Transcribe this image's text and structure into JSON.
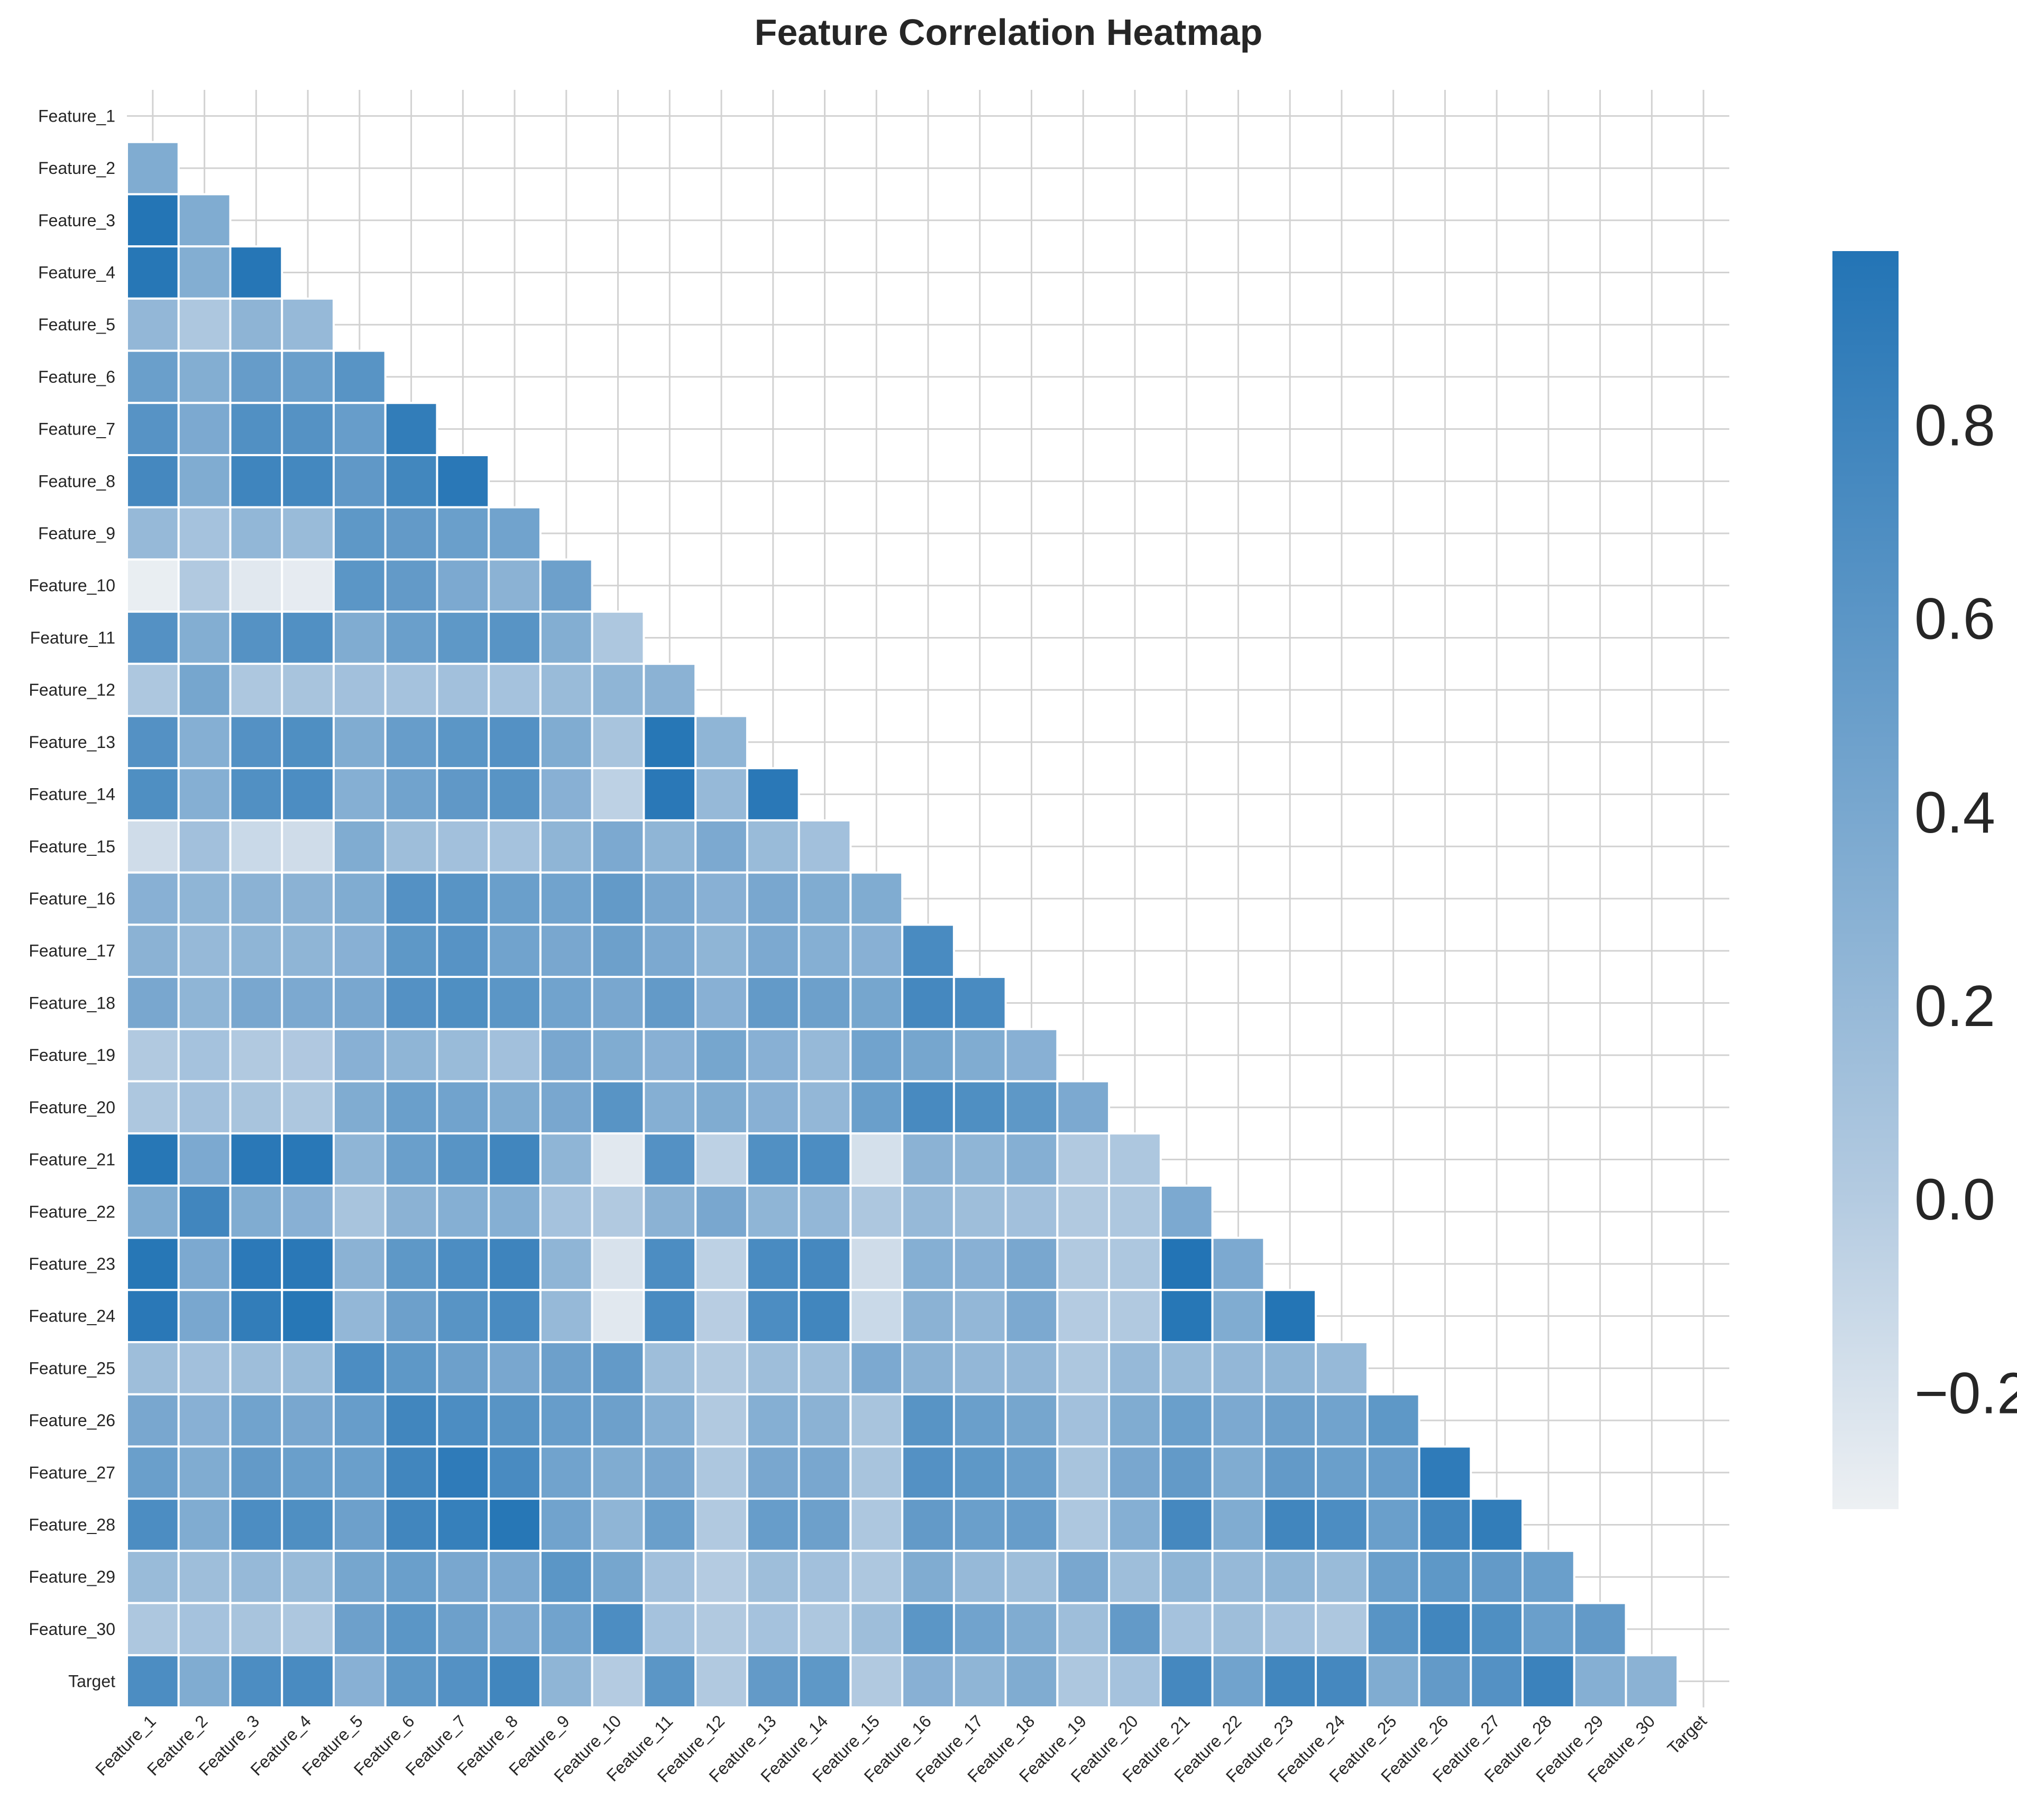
{
  "chart_data": {
    "type": "heatmap",
    "title": "Feature Correlation Heatmap",
    "layout": "lower-triangle",
    "labels": [
      "Feature_1",
      "Feature_2",
      "Feature_3",
      "Feature_4",
      "Feature_5",
      "Feature_6",
      "Feature_7",
      "Feature_8",
      "Feature_9",
      "Feature_10",
      "Feature_11",
      "Feature_12",
      "Feature_13",
      "Feature_14",
      "Feature_15",
      "Feature_16",
      "Feature_17",
      "Feature_18",
      "Feature_19",
      "Feature_20",
      "Feature_21",
      "Feature_22",
      "Feature_23",
      "Feature_24",
      "Feature_25",
      "Feature_26",
      "Feature_27",
      "Feature_28",
      "Feature_29",
      "Feature_30",
      "Target"
    ],
    "values": [
      [],
      [
        0.35
      ],
      [
        0.97,
        0.35
      ],
      [
        0.95,
        0.33,
        0.96
      ],
      [
        0.22,
        0.05,
        0.26,
        0.2
      ],
      [
        0.5,
        0.33,
        0.53,
        0.5,
        0.62
      ],
      [
        0.63,
        0.38,
        0.67,
        0.64,
        0.52,
        0.88
      ],
      [
        0.75,
        0.35,
        0.79,
        0.76,
        0.57,
        0.77,
        0.93
      ],
      [
        0.2,
        0.1,
        0.23,
        0.18,
        0.58,
        0.55,
        0.5,
        0.45
      ],
      [
        -0.3,
        0.02,
        -0.25,
        -0.28,
        0.6,
        0.55,
        0.38,
        0.28,
        0.48
      ],
      [
        0.65,
        0.33,
        0.64,
        0.67,
        0.35,
        0.5,
        0.58,
        0.62,
        0.33,
        0.05
      ],
      [
        0.05,
        0.42,
        0.05,
        0.08,
        0.12,
        0.1,
        0.12,
        0.1,
        0.18,
        0.25,
        0.28
      ],
      [
        0.65,
        0.32,
        0.65,
        0.68,
        0.35,
        0.52,
        0.6,
        0.65,
        0.35,
        0.08,
        0.95,
        0.25
      ],
      [
        0.68,
        0.32,
        0.67,
        0.7,
        0.32,
        0.45,
        0.57,
        0.62,
        0.3,
        -0.05,
        0.93,
        0.2,
        0.93
      ],
      [
        -0.15,
        0.12,
        -0.12,
        -0.15,
        0.35,
        0.15,
        0.12,
        0.1,
        0.25,
        0.38,
        0.25,
        0.38,
        0.18,
        0.12
      ],
      [
        0.3,
        0.25,
        0.28,
        0.28,
        0.35,
        0.65,
        0.62,
        0.5,
        0.45,
        0.55,
        0.4,
        0.3,
        0.4,
        0.35,
        0.35
      ],
      [
        0.28,
        0.2,
        0.25,
        0.25,
        0.3,
        0.58,
        0.63,
        0.45,
        0.4,
        0.48,
        0.38,
        0.25,
        0.38,
        0.32,
        0.3,
        0.72
      ],
      [
        0.4,
        0.25,
        0.4,
        0.38,
        0.4,
        0.65,
        0.68,
        0.6,
        0.45,
        0.4,
        0.55,
        0.3,
        0.55,
        0.48,
        0.42,
        0.75,
        0.72
      ],
      [
        0.02,
        0.1,
        0.02,
        0.03,
        0.3,
        0.25,
        0.18,
        0.12,
        0.4,
        0.35,
        0.3,
        0.42,
        0.3,
        0.2,
        0.45,
        0.42,
        0.35,
        0.3
      ],
      [
        0.05,
        0.12,
        0.08,
        0.05,
        0.35,
        0.5,
        0.45,
        0.35,
        0.4,
        0.62,
        0.32,
        0.35,
        0.3,
        0.22,
        0.5,
        0.73,
        0.68,
        0.58,
        0.38
      ],
      [
        0.95,
        0.38,
        0.93,
        0.94,
        0.25,
        0.5,
        0.62,
        0.78,
        0.25,
        -0.25,
        0.65,
        -0.05,
        0.67,
        0.7,
        -0.18,
        0.28,
        0.25,
        0.32,
        0.02,
        0.05
      ],
      [
        0.35,
        0.78,
        0.35,
        0.3,
        0.08,
        0.28,
        0.32,
        0.32,
        0.1,
        0.02,
        0.28,
        0.4,
        0.25,
        0.22,
        0.05,
        0.2,
        0.15,
        0.12,
        0.02,
        0.05,
        0.38
      ],
      [
        0.95,
        0.38,
        0.92,
        0.93,
        0.28,
        0.58,
        0.7,
        0.8,
        0.25,
        -0.2,
        0.7,
        -0.05,
        0.72,
        0.75,
        -0.15,
        0.32,
        0.3,
        0.4,
        0.02,
        0.05,
        0.98,
        0.38
      ],
      [
        0.93,
        0.4,
        0.88,
        0.95,
        0.22,
        0.48,
        0.62,
        0.72,
        0.2,
        -0.25,
        0.72,
        -0.02,
        0.7,
        0.78,
        -0.12,
        0.28,
        0.22,
        0.38,
        0.0,
        0.02,
        0.95,
        0.35,
        0.97
      ],
      [
        0.15,
        0.12,
        0.15,
        0.18,
        0.7,
        0.58,
        0.48,
        0.4,
        0.48,
        0.55,
        0.15,
        0.02,
        0.15,
        0.15,
        0.38,
        0.28,
        0.22,
        0.22,
        0.05,
        0.2,
        0.18,
        0.22,
        0.25,
        0.2
      ],
      [
        0.4,
        0.3,
        0.45,
        0.4,
        0.52,
        0.78,
        0.7,
        0.62,
        0.52,
        0.48,
        0.32,
        0.02,
        0.32,
        0.28,
        0.08,
        0.62,
        0.5,
        0.42,
        0.12,
        0.35,
        0.5,
        0.38,
        0.48,
        0.45,
        0.58
      ],
      [
        0.5,
        0.35,
        0.55,
        0.5,
        0.5,
        0.78,
        0.9,
        0.72,
        0.45,
        0.35,
        0.4,
        0.05,
        0.4,
        0.4,
        0.08,
        0.65,
        0.58,
        0.5,
        0.08,
        0.4,
        0.55,
        0.35,
        0.55,
        0.5,
        0.52,
        0.9
      ],
      [
        0.7,
        0.35,
        0.7,
        0.68,
        0.48,
        0.78,
        0.85,
        0.95,
        0.45,
        0.25,
        0.5,
        0.02,
        0.52,
        0.48,
        0.05,
        0.55,
        0.5,
        0.52,
        0.05,
        0.32,
        0.75,
        0.35,
        0.78,
        0.7,
        0.5,
        0.78,
        0.88
      ],
      [
        0.18,
        0.15,
        0.2,
        0.18,
        0.42,
        0.5,
        0.4,
        0.38,
        0.6,
        0.42,
        0.12,
        0.0,
        0.15,
        0.12,
        0.05,
        0.35,
        0.2,
        0.15,
        0.4,
        0.15,
        0.25,
        0.2,
        0.25,
        0.18,
        0.5,
        0.58,
        0.55,
        0.5
      ],
      [
        0.05,
        0.1,
        0.08,
        0.05,
        0.48,
        0.6,
        0.48,
        0.38,
        0.45,
        0.7,
        0.1,
        0.02,
        0.1,
        0.05,
        0.15,
        0.6,
        0.45,
        0.35,
        0.15,
        0.55,
        0.1,
        0.15,
        0.1,
        0.05,
        0.62,
        0.78,
        0.68,
        0.5,
        0.55
      ],
      [
        0.7,
        0.35,
        0.7,
        0.72,
        0.3,
        0.58,
        0.65,
        0.78,
        0.25,
        0.0,
        0.6,
        0.02,
        0.55,
        0.58,
        0.02,
        0.3,
        0.25,
        0.35,
        0.05,
        0.1,
        0.75,
        0.45,
        0.78,
        0.75,
        0.35,
        0.55,
        0.65,
        0.82,
        0.32,
        0.28
      ]
    ],
    "colorbar": {
      "min": -0.32,
      "max": 0.98,
      "ticks": [
        -0.2,
        0.0,
        0.2,
        0.4,
        0.6,
        0.8
      ],
      "tick_labels": [
        "−0.2",
        "0.0",
        "0.2",
        "0.4",
        "0.6",
        "0.8"
      ],
      "color_low": "#edf0f3",
      "color_mid": "#b4cbe1",
      "color_high": "#2374b5"
    },
    "grid": true,
    "colorbar_placement": "right"
  }
}
